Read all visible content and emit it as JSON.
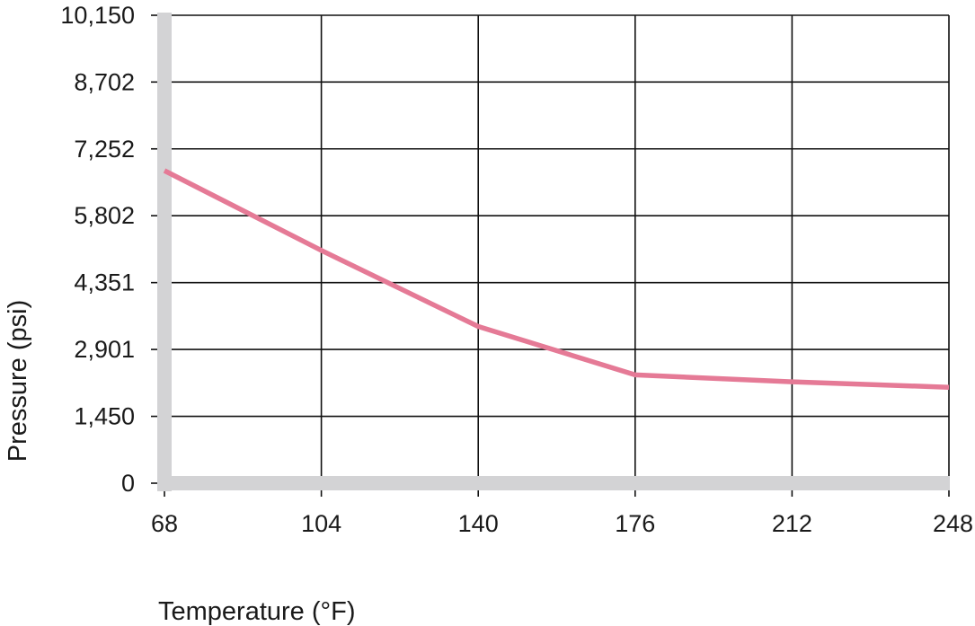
{
  "chart_data": {
    "type": "line",
    "title": "",
    "xlabel": "Temperature (°F)",
    "ylabel": "Pressure (psi)",
    "x_ticks": [
      "68",
      "104",
      "140",
      "176",
      "212",
      "248"
    ],
    "y_ticks": [
      "0",
      "1,450",
      "2,901",
      "4,351",
      "5,802",
      "7,252",
      "8,702",
      "10,150"
    ],
    "xlim": [
      68,
      248
    ],
    "ylim": [
      0,
      10150
    ],
    "grid": true,
    "legend": "none",
    "series": [
      {
        "color": "#e57a96",
        "x": [
          68,
          104,
          140,
          176,
          212,
          248
        ],
        "y": [
          6780,
          5050,
          3400,
          2350,
          2200,
          2080
        ]
      }
    ]
  },
  "colors": {
    "line": "#e57a96",
    "axis_bar": "#d3d3d5",
    "grid": "#111111",
    "text": "#1a1a1a"
  }
}
